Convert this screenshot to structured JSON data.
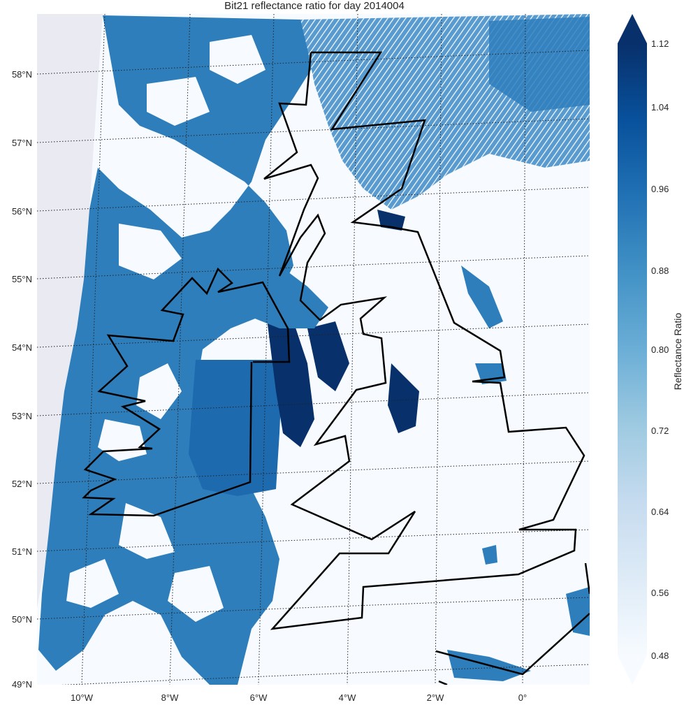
{
  "title": "Bit21 reflectance ratio for day 2014004",
  "map": {
    "lat_labels": [
      "58°N",
      "57°N",
      "56°N",
      "55°N",
      "54°N",
      "53°N",
      "52°N",
      "51°N",
      "50°N",
      "49°N"
    ],
    "lon_labels": [
      "10°W",
      "8°W",
      "6°W",
      "4°W",
      "2°W",
      "0°"
    ],
    "land_color": "#f7fbff",
    "cloud_color_dark": "#08306b",
    "cloud_color_mid": "#2e7ebc",
    "coastline_color": "#000000",
    "background_color": "#eaeaf2"
  },
  "colorbar": {
    "label": "Reflectance Ratio",
    "ticks": [
      "1.12",
      "1.04",
      "0.96",
      "0.88",
      "0.80",
      "0.72",
      "0.64",
      "0.56",
      "0.48"
    ],
    "min": 0.48,
    "max": 1.12,
    "colormap": "Blues",
    "extend": "both"
  }
}
